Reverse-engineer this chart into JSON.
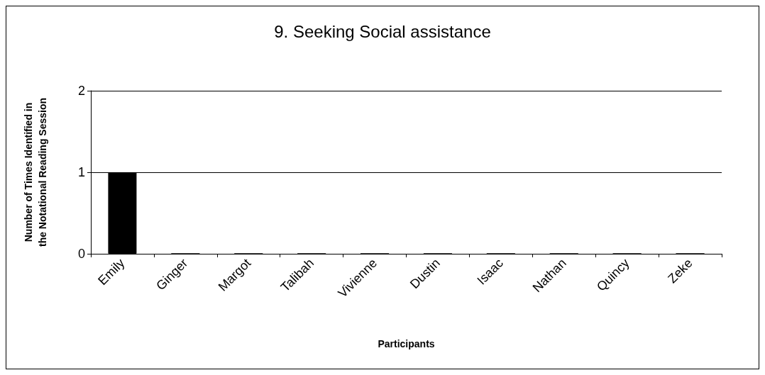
{
  "chart_data": {
    "type": "bar",
    "title": "9. Seeking Social assistance",
    "xlabel": "Participants",
    "ylabel": "Number of Times Identified in\nthe Notational Reading Session",
    "categories": [
      "Emily",
      "Ginger",
      "Margot",
      "Talibah",
      "Vivienne",
      "Dustin",
      "Isaac",
      "Nathan",
      "Quincy",
      "Zeke"
    ],
    "values": [
      1,
      0,
      0,
      0,
      0,
      0,
      0,
      0,
      0,
      0
    ],
    "color": "#000000",
    "ylim": [
      0,
      2
    ],
    "yticks": [
      0,
      1,
      2
    ],
    "grid": "y"
  }
}
